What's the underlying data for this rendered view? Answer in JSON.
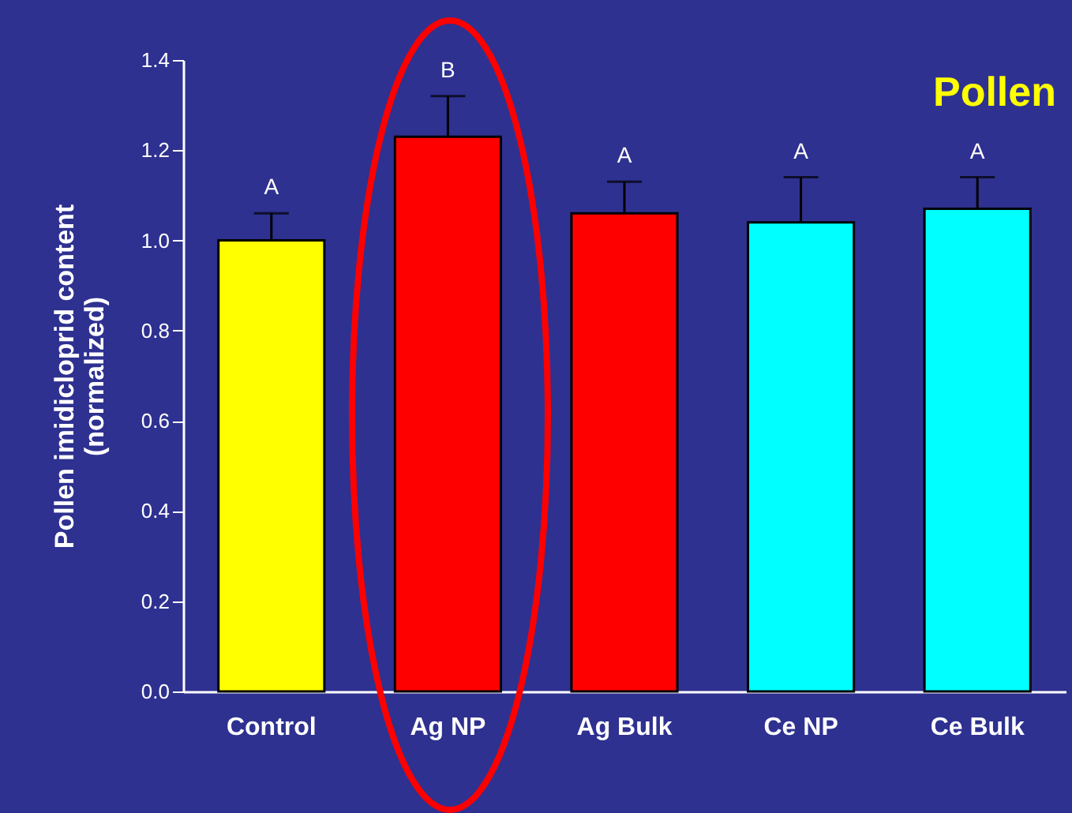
{
  "chart_data": {
    "type": "bar",
    "title": "Pollen",
    "ylabel": "Pollen imidicloprid content\n(normalized)",
    "categories": [
      "Control",
      "Ag NP",
      "Ag Bulk",
      "Ce NP",
      "Ce Bulk"
    ],
    "values": [
      1.0,
      1.23,
      1.06,
      1.04,
      1.07
    ],
    "errors": [
      0.06,
      0.09,
      0.07,
      0.1,
      0.07
    ],
    "colors": [
      "#ffff00",
      "#ff0000",
      "#ff0000",
      "#00ffff",
      "#00ffff"
    ],
    "ylim": [
      0,
      1.4
    ],
    "yticks": [
      {
        "value": 0,
        "label": "0.0"
      },
      0.2,
      0.4,
      0.6,
      0.8,
      {
        "value": 1,
        "label": "1.0"
      },
      1.2,
      1.4
    ],
    "annotations": [
      {
        "text": "A",
        "x": "Control",
        "y": 1.06
      },
      {
        "text": "B",
        "x": "Ag NP",
        "y": 1.32
      },
      {
        "text": "A",
        "x": "Ag Bulk",
        "y": 1.13
      },
      {
        "text": "A",
        "x": "Ce NP",
        "y": 1.14
      },
      {
        "text": "A",
        "x": "Ce Bulk",
        "y": 1.14
      }
    ]
  }
}
